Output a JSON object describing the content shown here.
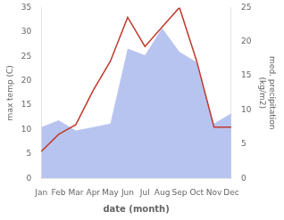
{
  "chart_data": {
    "type": "line",
    "categories": [
      "Jan",
      "Feb",
      "Mar",
      "Apr",
      "May",
      "Jun",
      "Jul",
      "Aug",
      "Sep",
      "Oct",
      "Nov",
      "Dec"
    ],
    "xlabel": "date (month)",
    "ylabel": "max temp (C)",
    "y2label": "med. precipitation\n(kg/m2)",
    "series": [
      {
        "type": "area",
        "axis": "y2",
        "color": "#b8c4f0",
        "values": [
          7.5,
          8.5,
          7.0,
          7.5,
          8.0,
          19.0,
          18.0,
          22.0,
          18.5,
          17.0,
          8.0,
          9.5
        ]
      },
      {
        "type": "line",
        "color": "#c0392b",
        "values": [
          5.5,
          9.0,
          11.0,
          18.0,
          24.0,
          33.0,
          27.0,
          31.0,
          35.0,
          24.0,
          10.5,
          10.5
        ]
      }
    ],
    "ylim": [
      0,
      35
    ],
    "yticks": [
      0,
      5,
      10,
      15,
      20,
      25,
      30,
      35
    ],
    "y2lim": [
      0,
      25
    ],
    "y2ticks": [
      0,
      5,
      10,
      15,
      20,
      25
    ],
    "grid": false
  }
}
